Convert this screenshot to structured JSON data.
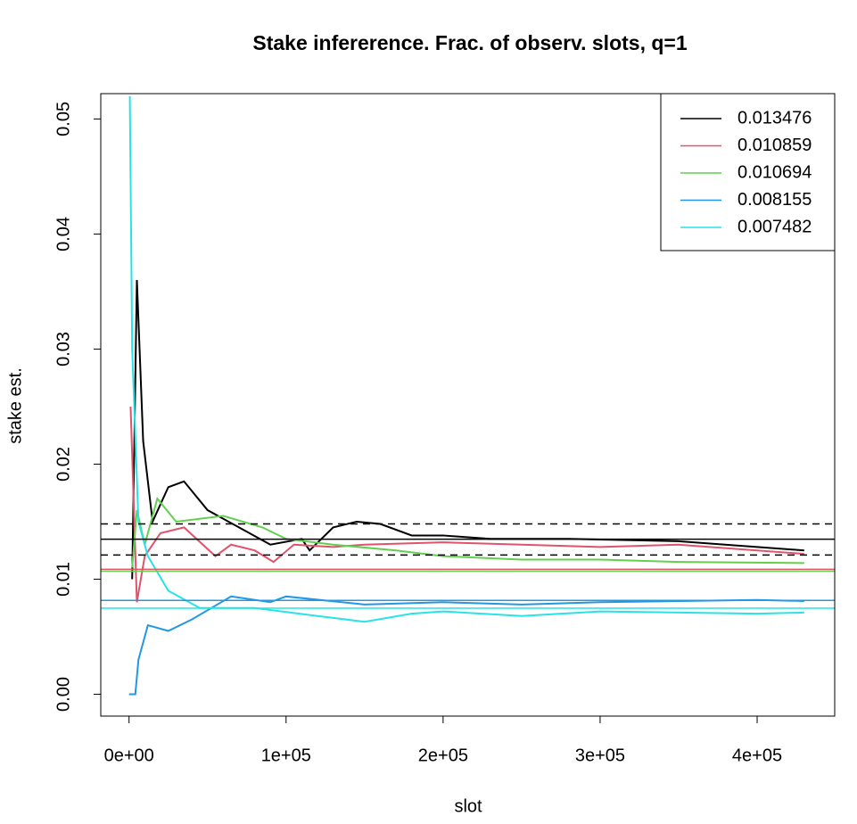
{
  "chart_data": {
    "type": "line",
    "title": "Stake infererence. Frac. of observ. slots, q=1",
    "x_label": "slot",
    "y_label": "stake est.",
    "xlim": [
      -18000,
      449400
    ],
    "ylim": [
      -0.0019,
      0.0522
    ],
    "xticks": [
      {
        "value": 0,
        "label": "0e+00"
      },
      {
        "value": 100000,
        "label": "1e+05"
      },
      {
        "value": 200000,
        "label": "2e+05"
      },
      {
        "value": 300000,
        "label": "3e+05"
      },
      {
        "value": 400000,
        "label": "4e+05"
      }
    ],
    "yticks": [
      {
        "value": 0,
        "label": "0.00"
      },
      0.01,
      0.02,
      0.03,
      0.04,
      0.05
    ],
    "legend": "top-right",
    "dashed_hlines": [
      0.0148,
      0.0121
    ],
    "series": [
      {
        "name": "0.013476",
        "color": "#000000",
        "hline": 0.013476,
        "x": [
          2000,
          5000,
          9000,
          15000,
          25000,
          35000,
          50000,
          70000,
          90000,
          110000,
          115000,
          130000,
          145000,
          160000,
          180000,
          200000,
          230000,
          280000,
          350000,
          430000
        ],
        "values": [
          0.01,
          0.036,
          0.022,
          0.015,
          0.018,
          0.0185,
          0.016,
          0.0145,
          0.013,
          0.0135,
          0.0125,
          0.0145,
          0.015,
          0.0148,
          0.0138,
          0.0138,
          0.0135,
          0.0135,
          0.0133,
          0.0125
        ]
      },
      {
        "name": "0.010859",
        "color": "#DF536B",
        "hline": 0.010859,
        "x": [
          1000,
          5000,
          10000,
          20000,
          35000,
          55000,
          65000,
          80000,
          92000,
          105000,
          130000,
          150000,
          200000,
          250000,
          300000,
          350000,
          430000
        ],
        "values": [
          0.025,
          0.008,
          0.012,
          0.014,
          0.0145,
          0.012,
          0.013,
          0.0125,
          0.0115,
          0.013,
          0.0128,
          0.013,
          0.0132,
          0.013,
          0.0128,
          0.013,
          0.0122
        ]
      },
      {
        "name": "0.010694",
        "color": "#61D04F",
        "hline": 0.010694,
        "x": [
          2000,
          5000,
          10000,
          18000,
          30000,
          60000,
          85000,
          100000,
          130000,
          170000,
          200000,
          250000,
          300000,
          350000,
          430000
        ],
        "values": [
          0.011,
          0.016,
          0.013,
          0.017,
          0.015,
          0.0155,
          0.0145,
          0.0135,
          0.013,
          0.0125,
          0.012,
          0.0117,
          0.0117,
          0.0115,
          0.0114
        ]
      },
      {
        "name": "0.008155",
        "color": "#2297E6",
        "hline": 0.008155,
        "x": [
          0,
          4000,
          6000,
          12000,
          25000,
          40000,
          65000,
          90000,
          100000,
          150000,
          200000,
          250000,
          300000,
          400000,
          430000
        ],
        "values": [
          0.0,
          0.0,
          0.003,
          0.006,
          0.0055,
          0.0065,
          0.0085,
          0.008,
          0.0085,
          0.0078,
          0.008,
          0.0078,
          0.008,
          0.0082,
          0.0081
        ]
      },
      {
        "name": "0.007482",
        "color": "#28E2E5",
        "hline": 0.007482,
        "x": [
          500,
          2000,
          6000,
          12000,
          25000,
          45000,
          80000,
          120000,
          150000,
          180000,
          200000,
          250000,
          300000,
          400000,
          430000
        ],
        "values": [
          0.052,
          0.03,
          0.015,
          0.012,
          0.009,
          0.0075,
          0.0075,
          0.0068,
          0.0063,
          0.007,
          0.0072,
          0.0068,
          0.0072,
          0.007,
          0.0071
        ]
      }
    ]
  }
}
